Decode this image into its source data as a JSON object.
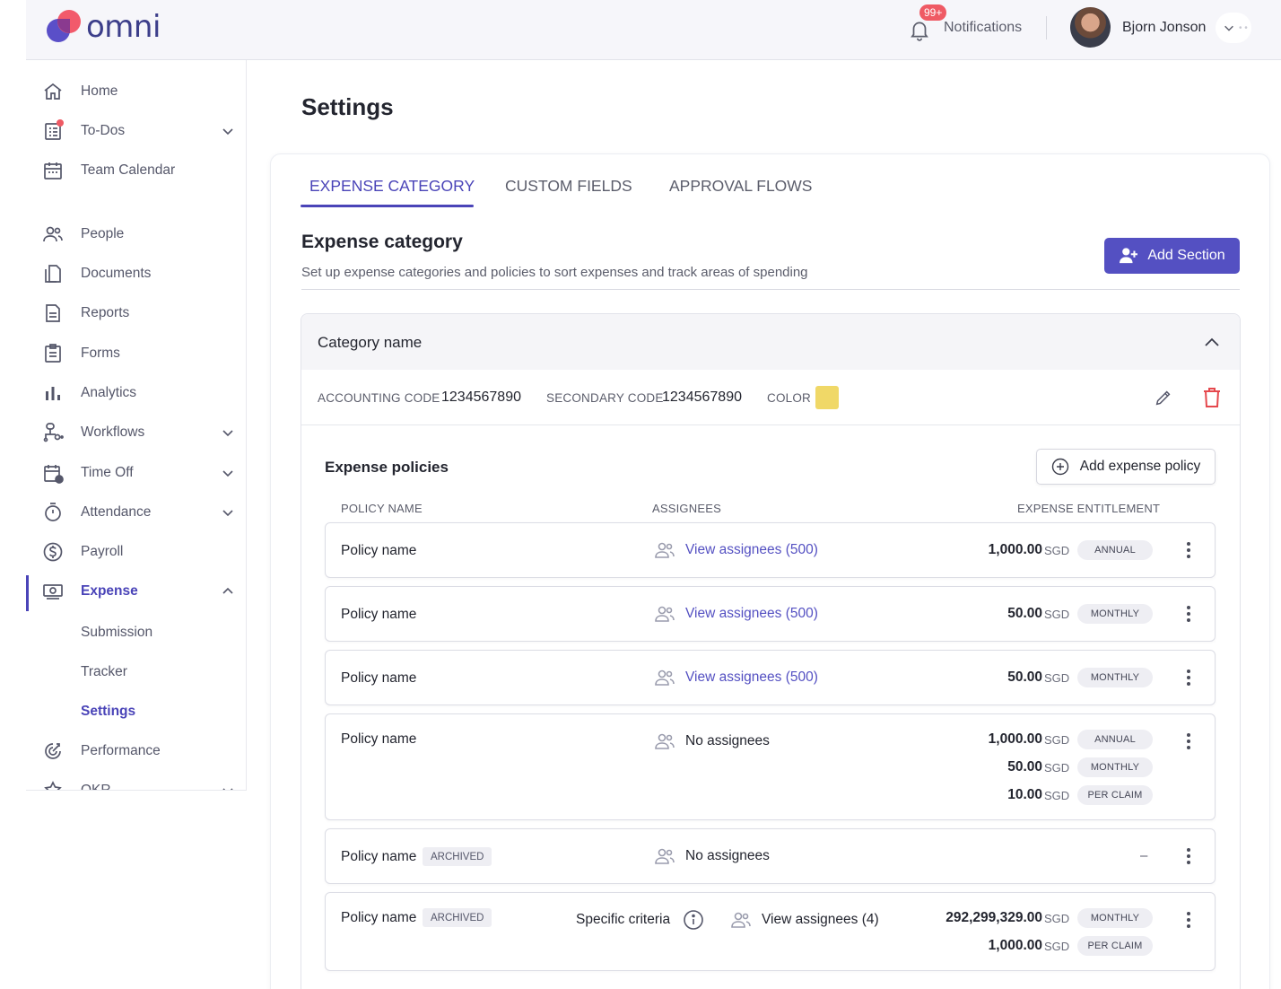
{
  "header": {
    "logo_text": "omni",
    "notifications_badge": "99+",
    "notifications_label": "Notifications",
    "user_name": "Bjorn Jonson"
  },
  "sidebar": {
    "items": [
      {
        "label": "Home",
        "icon": "home-icon"
      },
      {
        "label": "To-Dos",
        "icon": "todos-icon"
      },
      {
        "label": "Team Calendar",
        "icon": "calendar-icon"
      },
      {
        "label": "People",
        "icon": "people-icon"
      },
      {
        "label": "Documents",
        "icon": "documents-icon"
      },
      {
        "label": "Reports",
        "icon": "reports-icon"
      },
      {
        "label": "Forms",
        "icon": "forms-icon"
      },
      {
        "label": "Analytics",
        "icon": "analytics-icon"
      },
      {
        "label": "Workflows",
        "icon": "workflows-icon"
      },
      {
        "label": "Time Off",
        "icon": "time-off-icon"
      },
      {
        "label": "Attendance",
        "icon": "stopwatch-icon"
      },
      {
        "label": "Payroll",
        "icon": "dollar-icon"
      },
      {
        "label": "Expense",
        "icon": "money-icon"
      },
      {
        "label": "Performance",
        "icon": "performance-icon"
      },
      {
        "label": "OKR",
        "icon": "okr-icon"
      }
    ],
    "expense_sub": [
      "Submission",
      "Tracker",
      "Settings"
    ]
  },
  "main": {
    "page_title": "Settings",
    "tabs": [
      "EXPENSE CATEGORY",
      "CUSTOM FIELDS",
      "APPROVAL FLOWS"
    ],
    "section_title": "Expense category",
    "section_desc": "Set up expense categories and policies to sort expenses and track areas of spending",
    "add_section_label": "Add Section",
    "category": {
      "name": "Category name",
      "accounting_code_label": "ACCOUNTING CODE",
      "accounting_code": "1234567890",
      "secondary_code_label": "SECONDARY CODE",
      "secondary_code": "1234567890",
      "color_label": "COLOR",
      "color": "#f0d867"
    },
    "policies": {
      "title": "Expense policies",
      "add_label": "Add expense policy",
      "col_name": "POLICY NAME",
      "col_assignees": "ASSIGNEES",
      "col_entitlement": "EXPENSE ENTITLEMENT",
      "archived_label": "ARCHIVED",
      "criteria_label": "Specific criteria",
      "dash": "–",
      "rows": [
        {
          "name": "Policy name",
          "assignees": "View assignees (500)",
          "entitlements": [
            {
              "amount": "1,000.00",
              "currency": "SGD",
              "period": "ANNUAL"
            }
          ]
        },
        {
          "name": "Policy name",
          "assignees": "View assignees (500)",
          "entitlements": [
            {
              "amount": "50.00",
              "currency": "SGD",
              "period": "MONTHLY"
            }
          ]
        },
        {
          "name": "Policy name",
          "assignees": "View assignees (500)",
          "entitlements": [
            {
              "amount": "50.00",
              "currency": "SGD",
              "period": "MONTHLY"
            }
          ]
        },
        {
          "name": "Policy name",
          "assignees": "No assignees",
          "entitlements": [
            {
              "amount": "1,000.00",
              "currency": "SGD",
              "period": "ANNUAL"
            },
            {
              "amount": "50.00",
              "currency": "SGD",
              "period": "MONTHLY"
            },
            {
              "amount": "10.00",
              "currency": "SGD",
              "period": "PER CLAIM"
            }
          ]
        },
        {
          "name": "Policy name",
          "assignees": "No assignees",
          "entitlements": []
        },
        {
          "name": "Policy name",
          "assignees": "View assignees (4)",
          "entitlements": [
            {
              "amount": "292,299,329.00",
              "currency": "SGD",
              "period": "MONTHLY"
            },
            {
              "amount": "1,000.00",
              "currency": "SGD",
              "period": "PER CLAIM"
            }
          ]
        }
      ]
    }
  },
  "colors": {
    "accent": "#4a44b8",
    "button": "#5450c2",
    "danger": "#e5484d",
    "badge": "#ef5a64"
  }
}
